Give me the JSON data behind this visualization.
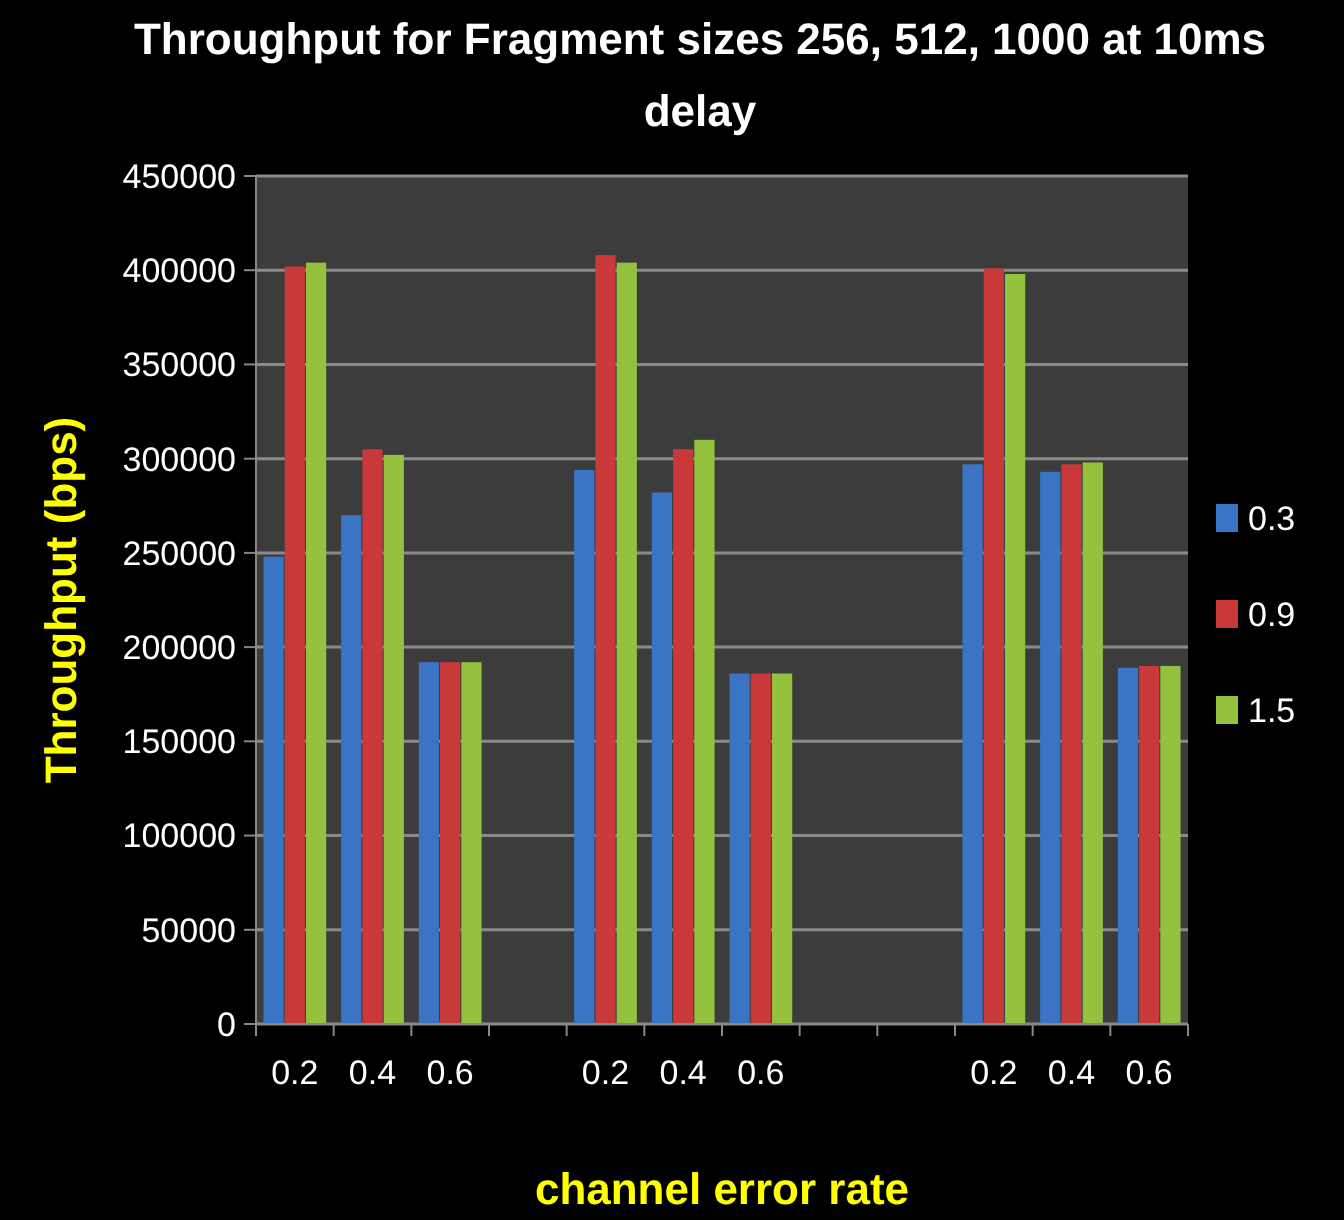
{
  "chart_data": {
    "type": "bar",
    "title": "Throughput for Fragment sizes 256, 512, 1000 at 10ms delay",
    "xlabel": "channel error rate",
    "ylabel": "Throughput  (bps)",
    "categories": [
      "0.2",
      "0.4",
      "0.6",
      null,
      "0.2",
      "0.4",
      "0.6",
      null,
      null,
      "0.2",
      "0.4",
      "0.6"
    ],
    "series": [
      {
        "name": "0.3",
        "color": "#3b74c4",
        "values": [
          248000,
          270000,
          192000,
          null,
          294000,
          282000,
          186000,
          null,
          null,
          297000,
          293000,
          189000
        ]
      },
      {
        "name": "0.9",
        "color": "#c9393a",
        "values": [
          402000,
          305000,
          192000,
          null,
          408000,
          305000,
          186000,
          null,
          null,
          401000,
          297000,
          190000
        ]
      },
      {
        "name": "1.5",
        "color": "#94c13e",
        "values": [
          404000,
          302000,
          192000,
          null,
          404000,
          310000,
          186000,
          null,
          null,
          398000,
          298000,
          190000
        ]
      }
    ],
    "ylim": [
      0,
      450000
    ],
    "yticks": [
      0,
      50000,
      100000,
      150000,
      200000,
      250000,
      300000,
      350000,
      400000,
      450000
    ],
    "grid": "y",
    "legend": "right"
  }
}
